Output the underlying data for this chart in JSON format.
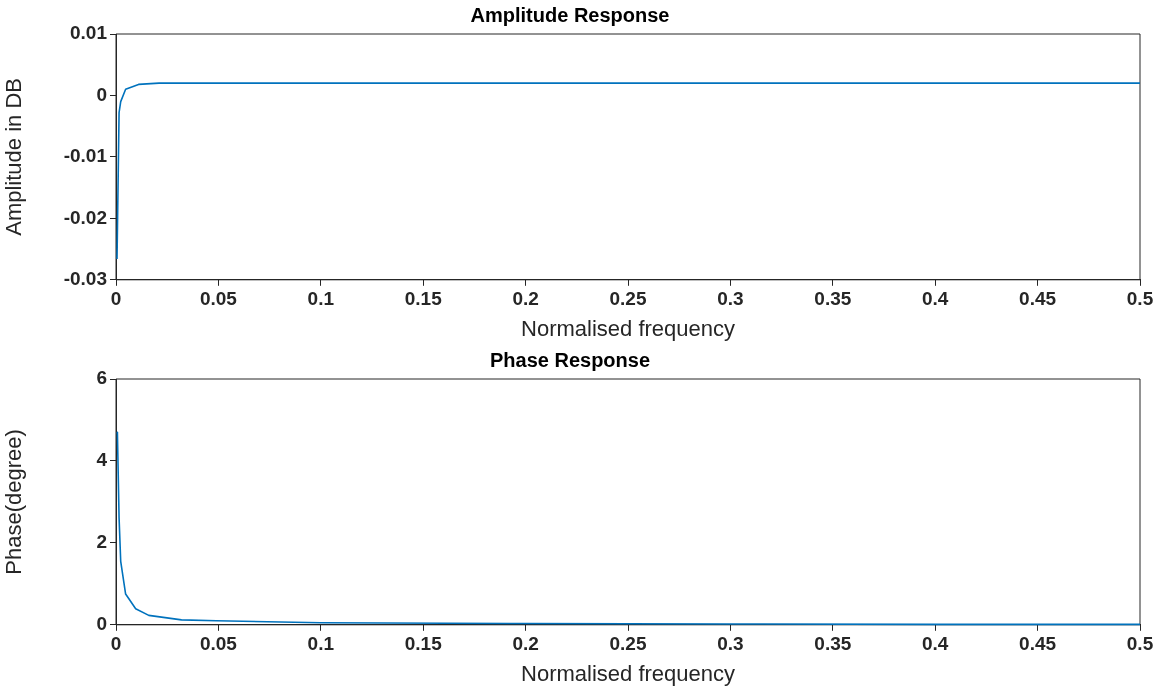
{
  "chart_data": [
    {
      "type": "line",
      "title": "Amplitude Response",
      "xlabel": "Normalised frequency",
      "ylabel": "Amplitude in DB",
      "xlim": [
        0,
        0.5
      ],
      "xticks": [
        0,
        0.05,
        0.1,
        0.15,
        0.2,
        0.25,
        0.3,
        0.35,
        0.4,
        0.45,
        0.5
      ],
      "ylim": [
        -0.03,
        0.01
      ],
      "yticks": [
        -0.03,
        -0.02,
        -0.01,
        0,
        0.01
      ],
      "grid": false,
      "legend": false,
      "marker": "none",
      "line_style": "solid",
      "series": [
        {
          "color": "#0072bd",
          "x": [
            0.0005,
            0.0015,
            0.0023,
            0.0047,
            0.011,
            0.021,
            0.05,
            0.1,
            0.2,
            0.3,
            0.4,
            0.5
          ],
          "values": [
            -0.0266,
            -0.0028,
            -0.001,
            0.001,
            0.0018,
            0.002,
            0.002,
            0.002,
            0.002,
            0.002,
            0.002,
            0.002
          ]
        }
      ]
    },
    {
      "type": "line",
      "title": "Phase Response",
      "xlabel": "Normalised frequency",
      "ylabel": "Phase(degree)",
      "xlim": [
        0,
        0.5
      ],
      "xticks": [
        0,
        0.05,
        0.1,
        0.15,
        0.2,
        0.25,
        0.3,
        0.35,
        0.4,
        0.45,
        0.5
      ],
      "ylim": [
        0,
        6
      ],
      "yticks": [
        0,
        2,
        4,
        6
      ],
      "grid": false,
      "legend": false,
      "marker": "none",
      "line_style": "solid",
      "series": [
        {
          "color": "#0072bd",
          "x": [
            0.0005,
            0.0007,
            0.0015,
            0.0023,
            0.0047,
            0.0096,
            0.016,
            0.032,
            0.049,
            0.1,
            0.2,
            0.3,
            0.4,
            0.5
          ],
          "values": [
            4.7,
            4.66,
            2.61,
            1.55,
            0.75,
            0.39,
            0.23,
            0.12,
            0.1,
            0.05,
            0.03,
            0.02,
            0.01,
            0.01
          ]
        }
      ]
    }
  ]
}
